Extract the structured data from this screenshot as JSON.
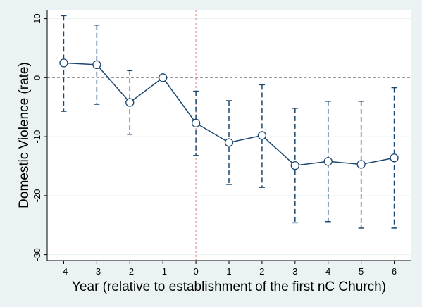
{
  "chart_data": {
    "type": "line",
    "title": "",
    "xlabel": "Year (relative to establishment of the first nC Church)",
    "ylabel": "Domestic Violence (rate)",
    "x": [
      -4,
      -3,
      -2,
      -1,
      0,
      1,
      2,
      3,
      4,
      5,
      6
    ],
    "x_ticks": [
      "-4",
      "-3",
      "-2",
      "-1",
      "0",
      "1",
      "2",
      "3",
      "4",
      "5",
      "6"
    ],
    "y_ticks": [
      "-30",
      "-20",
      "-10",
      "0",
      "10"
    ],
    "y_tick_values": [
      -30,
      -20,
      -10,
      0,
      10
    ],
    "xlim": [
      -4.5,
      6.5
    ],
    "ylim": [
      -31,
      11.5
    ],
    "series": [
      {
        "values": [
          2.5,
          2.2,
          -4.2,
          0.0,
          -7.7,
          -11.0,
          -9.8,
          -14.9,
          -14.2,
          -14.7,
          -13.6
        ],
        "ci_lower": [
          -5.7,
          -4.5,
          -9.6,
          null,
          -13.2,
          -18.1,
          -18.6,
          -24.6,
          -24.4,
          -25.5,
          -25.5
        ],
        "ci_upper": [
          10.5,
          8.9,
          1.2,
          null,
          -2.3,
          -3.9,
          -1.2,
          -5.2,
          -4.0,
          -4.0,
          -1.7
        ]
      }
    ],
    "reference_lines": {
      "y": 0,
      "x": 0
    },
    "grid": true,
    "legend": "none",
    "colors": {
      "line": "#1a476f",
      "marker_fill": "#ffffff",
      "ci": "#1a476f",
      "hline": "#8c8c8c",
      "vline": "#d08080",
      "grid": "#eaf2f3",
      "plot_bg": "#ffffff",
      "outer_bg": "#eaf2f3"
    }
  }
}
